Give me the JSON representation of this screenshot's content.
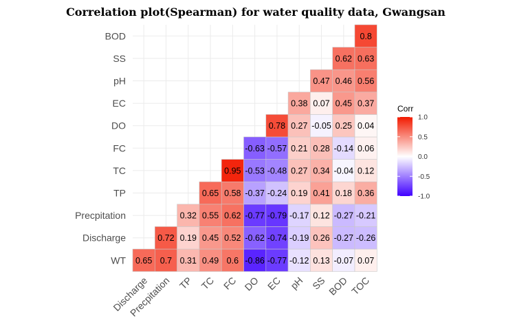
{
  "chart_data": {
    "type": "heatmap",
    "title": "Correlation plot(Spearman) for water quality data, Gwangsan",
    "x_categories": [
      "Discharge",
      "Precpitation",
      "TP",
      "TC",
      "FC",
      "DO",
      "EC",
      "pH",
      "SS",
      "BOD",
      "TOC"
    ],
    "y_categories": [
      "WT",
      "Discharge",
      "Precpitation",
      "TP",
      "TC",
      "FC",
      "DO",
      "EC",
      "pH",
      "SS",
      "BOD"
    ],
    "cells": [
      {
        "y": "WT",
        "x": "Discharge",
        "label": "0.65",
        "value": 0.65
      },
      {
        "y": "WT",
        "x": "Precpitation",
        "label": "0.7",
        "value": 0.7
      },
      {
        "y": "WT",
        "x": "TP",
        "label": "0.31",
        "value": 0.31
      },
      {
        "y": "WT",
        "x": "TC",
        "label": "0.49",
        "value": 0.49
      },
      {
        "y": "WT",
        "x": "FC",
        "label": "0.6",
        "value": 0.6
      },
      {
        "y": "WT",
        "x": "DO",
        "label": "-0.86",
        "value": -0.86
      },
      {
        "y": "WT",
        "x": "EC",
        "label": "-0.77",
        "value": -0.77
      },
      {
        "y": "WT",
        "x": "pH",
        "label": "-0.12",
        "value": -0.12
      },
      {
        "y": "WT",
        "x": "SS",
        "label": "0.13",
        "value": 0.13
      },
      {
        "y": "WT",
        "x": "BOD",
        "label": "-0.07",
        "value": -0.07
      },
      {
        "y": "WT",
        "x": "TOC",
        "label": "0.07",
        "value": 0.07
      },
      {
        "y": "Discharge",
        "x": "Precpitation",
        "label": "0.72",
        "value": 0.72
      },
      {
        "y": "Discharge",
        "x": "TP",
        "label": "0.19",
        "value": 0.19
      },
      {
        "y": "Discharge",
        "x": "TC",
        "label": "0.45",
        "value": 0.45
      },
      {
        "y": "Discharge",
        "x": "FC",
        "label": "0.52",
        "value": 0.52
      },
      {
        "y": "Discharge",
        "x": "DO",
        "label": "-0.62",
        "value": -0.62
      },
      {
        "y": "Discharge",
        "x": "EC",
        "label": "-0.74",
        "value": -0.74
      },
      {
        "y": "Discharge",
        "x": "pH",
        "label": "-0.19",
        "value": -0.19
      },
      {
        "y": "Discharge",
        "x": "SS",
        "label": "0.26",
        "value": 0.26
      },
      {
        "y": "Discharge",
        "x": "BOD",
        "label": "-0.27",
        "value": -0.27
      },
      {
        "y": "Discharge",
        "x": "TOC",
        "label": "-0.26",
        "value": -0.26
      },
      {
        "y": "Precpitation",
        "x": "TP",
        "label": "0.32",
        "value": 0.32
      },
      {
        "y": "Precpitation",
        "x": "TC",
        "label": "0.55",
        "value": 0.55
      },
      {
        "y": "Precpitation",
        "x": "FC",
        "label": "0.62",
        "value": 0.62
      },
      {
        "y": "Precpitation",
        "x": "DO",
        "label": "-0.77",
        "value": -0.77
      },
      {
        "y": "Precpitation",
        "x": "EC",
        "label": "-0.79",
        "value": -0.79
      },
      {
        "y": "Precpitation",
        "x": "pH",
        "label": "-0.17",
        "value": -0.17
      },
      {
        "y": "Precpitation",
        "x": "SS",
        "label": "0.12",
        "value": 0.12
      },
      {
        "y": "Precpitation",
        "x": "BOD",
        "label": "-0.27",
        "value": -0.27
      },
      {
        "y": "Precpitation",
        "x": "TOC",
        "label": "-0.21",
        "value": -0.21
      },
      {
        "y": "TP",
        "x": "TC",
        "label": "0.65",
        "value": 0.65
      },
      {
        "y": "TP",
        "x": "FC",
        "label": "0.58",
        "value": 0.58
      },
      {
        "y": "TP",
        "x": "DO",
        "label": "-0.37",
        "value": -0.37
      },
      {
        "y": "TP",
        "x": "EC",
        "label": "-0.24",
        "value": -0.24
      },
      {
        "y": "TP",
        "x": "pH",
        "label": "0.19",
        "value": 0.19
      },
      {
        "y": "TP",
        "x": "SS",
        "label": "0.41",
        "value": 0.41
      },
      {
        "y": "TP",
        "x": "BOD",
        "label": "0.18",
        "value": 0.18
      },
      {
        "y": "TP",
        "x": "TOC",
        "label": "0.36",
        "value": 0.36
      },
      {
        "y": "TC",
        "x": "FC",
        "label": "0.95",
        "value": 0.95
      },
      {
        "y": "TC",
        "x": "DO",
        "label": "-0.53",
        "value": -0.53
      },
      {
        "y": "TC",
        "x": "EC",
        "label": "-0.48",
        "value": -0.48
      },
      {
        "y": "TC",
        "x": "pH",
        "label": "0.27",
        "value": 0.27
      },
      {
        "y": "TC",
        "x": "SS",
        "label": "0.34",
        "value": 0.34
      },
      {
        "y": "TC",
        "x": "BOD",
        "label": "-0.04",
        "value": -0.04
      },
      {
        "y": "TC",
        "x": "TOC",
        "label": "0.12",
        "value": 0.12
      },
      {
        "y": "FC",
        "x": "DO",
        "label": "-0.63",
        "value": -0.63
      },
      {
        "y": "FC",
        "x": "EC",
        "label": "-0.57",
        "value": -0.57
      },
      {
        "y": "FC",
        "x": "pH",
        "label": "0.21",
        "value": 0.21
      },
      {
        "y": "FC",
        "x": "SS",
        "label": "0.28",
        "value": 0.28
      },
      {
        "y": "FC",
        "x": "BOD",
        "label": "-0.14",
        "value": -0.14
      },
      {
        "y": "FC",
        "x": "TOC",
        "label": "0.06",
        "value": 0.06
      },
      {
        "y": "DO",
        "x": "EC",
        "label": "0.78",
        "value": 0.78
      },
      {
        "y": "DO",
        "x": "pH",
        "label": "0.27",
        "value": 0.27
      },
      {
        "y": "DO",
        "x": "SS",
        "label": "-0.05",
        "value": -0.05
      },
      {
        "y": "DO",
        "x": "BOD",
        "label": "0.25",
        "value": 0.25
      },
      {
        "y": "DO",
        "x": "TOC",
        "label": "0.04",
        "value": 0.04
      },
      {
        "y": "EC",
        "x": "pH",
        "label": "0.38",
        "value": 0.38
      },
      {
        "y": "EC",
        "x": "SS",
        "label": "0.07",
        "value": 0.07
      },
      {
        "y": "EC",
        "x": "BOD",
        "label": "0.45",
        "value": 0.45
      },
      {
        "y": "EC",
        "x": "TOC",
        "label": "0.37",
        "value": 0.37
      },
      {
        "y": "pH",
        "x": "SS",
        "label": "0.47",
        "value": 0.47
      },
      {
        "y": "pH",
        "x": "BOD",
        "label": "0.46",
        "value": 0.46
      },
      {
        "y": "pH",
        "x": "TOC",
        "label": "0.56",
        "value": 0.56
      },
      {
        "y": "SS",
        "x": "BOD",
        "label": "0.62",
        "value": 0.62
      },
      {
        "y": "SS",
        "x": "TOC",
        "label": "0.63",
        "value": 0.63
      },
      {
        "y": "BOD",
        "x": "TOC",
        "label": "0.8",
        "value": 0.8
      }
    ],
    "legend": {
      "title": "Corr",
      "ticks": [
        1.0,
        0.5,
        0.0,
        -0.5,
        -1.0
      ],
      "tick_labels": [
        "1.0",
        "0.5",
        "0.0",
        "-0.5",
        "-1.0"
      ],
      "placement": "right"
    },
    "color_scale": {
      "low": "#3f00ff",
      "mid": "#ffffff",
      "high": "#f21a00",
      "limits": [
        -1,
        1
      ]
    },
    "grid": true
  }
}
